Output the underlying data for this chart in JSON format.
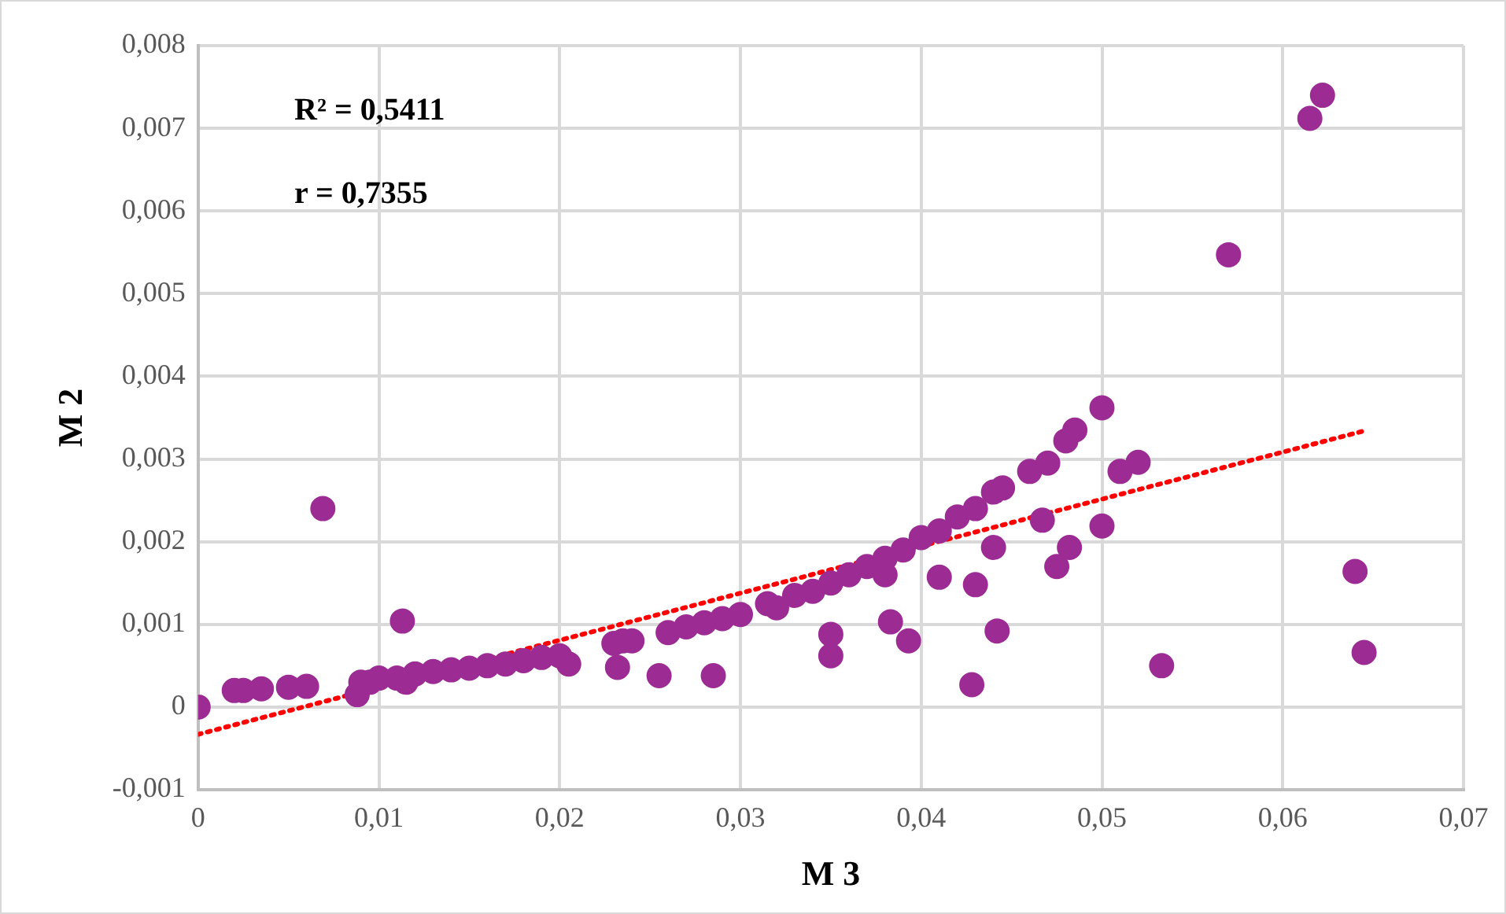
{
  "chart_data": {
    "type": "scatter",
    "xlabel": "M 3",
    "ylabel": "M 2",
    "annotations": [
      "R² = 0,5411",
      "r = 0,7355"
    ],
    "xlim": [
      0,
      0.07
    ],
    "ylim": [
      -0.001,
      0.008
    ],
    "xticks": [
      {
        "value": 0,
        "label": "0"
      },
      {
        "value": 0.01,
        "label": "0,01"
      },
      {
        "value": 0.02,
        "label": "0,02"
      },
      {
        "value": 0.03,
        "label": "0,03"
      },
      {
        "value": 0.04,
        "label": "0,04"
      },
      {
        "value": 0.05,
        "label": "0,05"
      },
      {
        "value": 0.06,
        "label": "0,06"
      },
      {
        "value": 0.07,
        "label": "0,07"
      }
    ],
    "yticks": [
      {
        "value": -0.001,
        "label": "-0,001"
      },
      {
        "value": 0,
        "label": "0"
      },
      {
        "value": 0.001,
        "label": "0,001"
      },
      {
        "value": 0.002,
        "label": "0,002"
      },
      {
        "value": 0.003,
        "label": "0,003"
      },
      {
        "value": 0.004,
        "label": "0,004"
      },
      {
        "value": 0.005,
        "label": "0,005"
      },
      {
        "value": 0.006,
        "label": "0,006"
      },
      {
        "value": 0.007,
        "label": "0,007"
      },
      {
        "value": 0.008,
        "label": "0,008"
      }
    ],
    "grid": true,
    "legend": false,
    "marker": "circle",
    "series": [
      {
        "type": "scatter",
        "color": "#9c2c94",
        "x": [
          0,
          0.002,
          0.0025,
          0.0035,
          0.005,
          0.006,
          0.0069,
          0.0088,
          0.009,
          0.0095,
          0.01,
          0.011,
          0.0113,
          0.0115,
          0.012,
          0.013,
          0.014,
          0.015,
          0.016,
          0.017,
          0.018,
          0.019,
          0.02,
          0.0205,
          0.023,
          0.0232,
          0.0235,
          0.024,
          0.0255,
          0.026,
          0.027,
          0.028,
          0.0285,
          0.029,
          0.03,
          0.0315,
          0.032,
          0.033,
          0.034,
          0.035,
          0.035,
          0.035,
          0.036,
          0.037,
          0.038,
          0.038,
          0.0383,
          0.039,
          0.0393,
          0.04,
          0.041,
          0.041,
          0.042,
          0.0428,
          0.043,
          0.043,
          0.044,
          0.044,
          0.0442,
          0.0445,
          0.046,
          0.0467,
          0.047,
          0.0475,
          0.048,
          0.0482,
          0.0485,
          0.05,
          0.05,
          0.051,
          0.052,
          0.0533,
          0.057,
          0.0615,
          0.0622,
          0.064,
          0.0645
        ],
        "values": [
          0,
          0.0002,
          0.0002,
          0.00022,
          0.00024,
          0.00025,
          0.0024,
          0.00015,
          0.0003,
          0.0003,
          0.00035,
          0.00035,
          0.00104,
          0.0003,
          0.0004,
          0.00043,
          0.00045,
          0.00047,
          0.0005,
          0.00052,
          0.00056,
          0.0006,
          0.00062,
          0.00052,
          0.00077,
          0.00048,
          0.0008,
          0.0008,
          0.00038,
          0.0009,
          0.00097,
          0.00102,
          0.00038,
          0.00107,
          0.00112,
          0.00125,
          0.0012,
          0.00135,
          0.0014,
          0.0015,
          0.00088,
          0.00062,
          0.0016,
          0.0017,
          0.0018,
          0.0016,
          0.00103,
          0.0019,
          0.0008,
          0.00205,
          0.00213,
          0.00157,
          0.0023,
          0.00027,
          0.0024,
          0.00148,
          0.0026,
          0.00193,
          0.00092,
          0.00265,
          0.00285,
          0.00226,
          0.00295,
          0.0017,
          0.00322,
          0.00193,
          0.00335,
          0.00362,
          0.00219,
          0.00285,
          0.00296,
          0.0005,
          0.00547,
          0.00712,
          0.0074,
          0.00164,
          0.00066
        ]
      },
      {
        "type": "line",
        "color": "#ff0000",
        "line_style": "dotted",
        "marker": "none",
        "x": [
          0,
          0.0645
        ],
        "values": [
          -0.00033,
          0.00334
        ]
      }
    ]
  }
}
